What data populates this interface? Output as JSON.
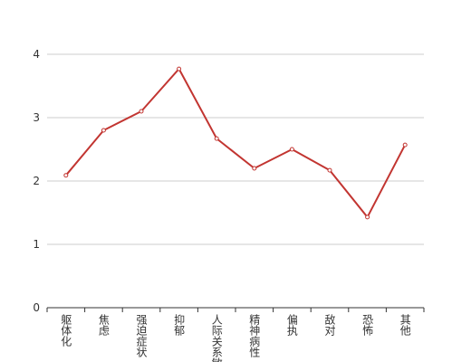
{
  "chart_data": {
    "type": "line",
    "categories": [
      "躯体化",
      "焦虑",
      "强迫症状",
      "抑郁",
      "人际关系敏感",
      "精神病性",
      "偏执",
      "敌对",
      "恐怖",
      "其他"
    ],
    "series": [
      {
        "color": "#c23531",
        "values": [
          2.09,
          2.8,
          3.1,
          3.77,
          2.67,
          2.2,
          2.5,
          2.17,
          1.43,
          2.57
        ]
      }
    ],
    "ylim": [
      0,
      4
    ],
    "yticks": [
      0,
      1,
      2,
      3,
      4
    ],
    "grid": true
  }
}
